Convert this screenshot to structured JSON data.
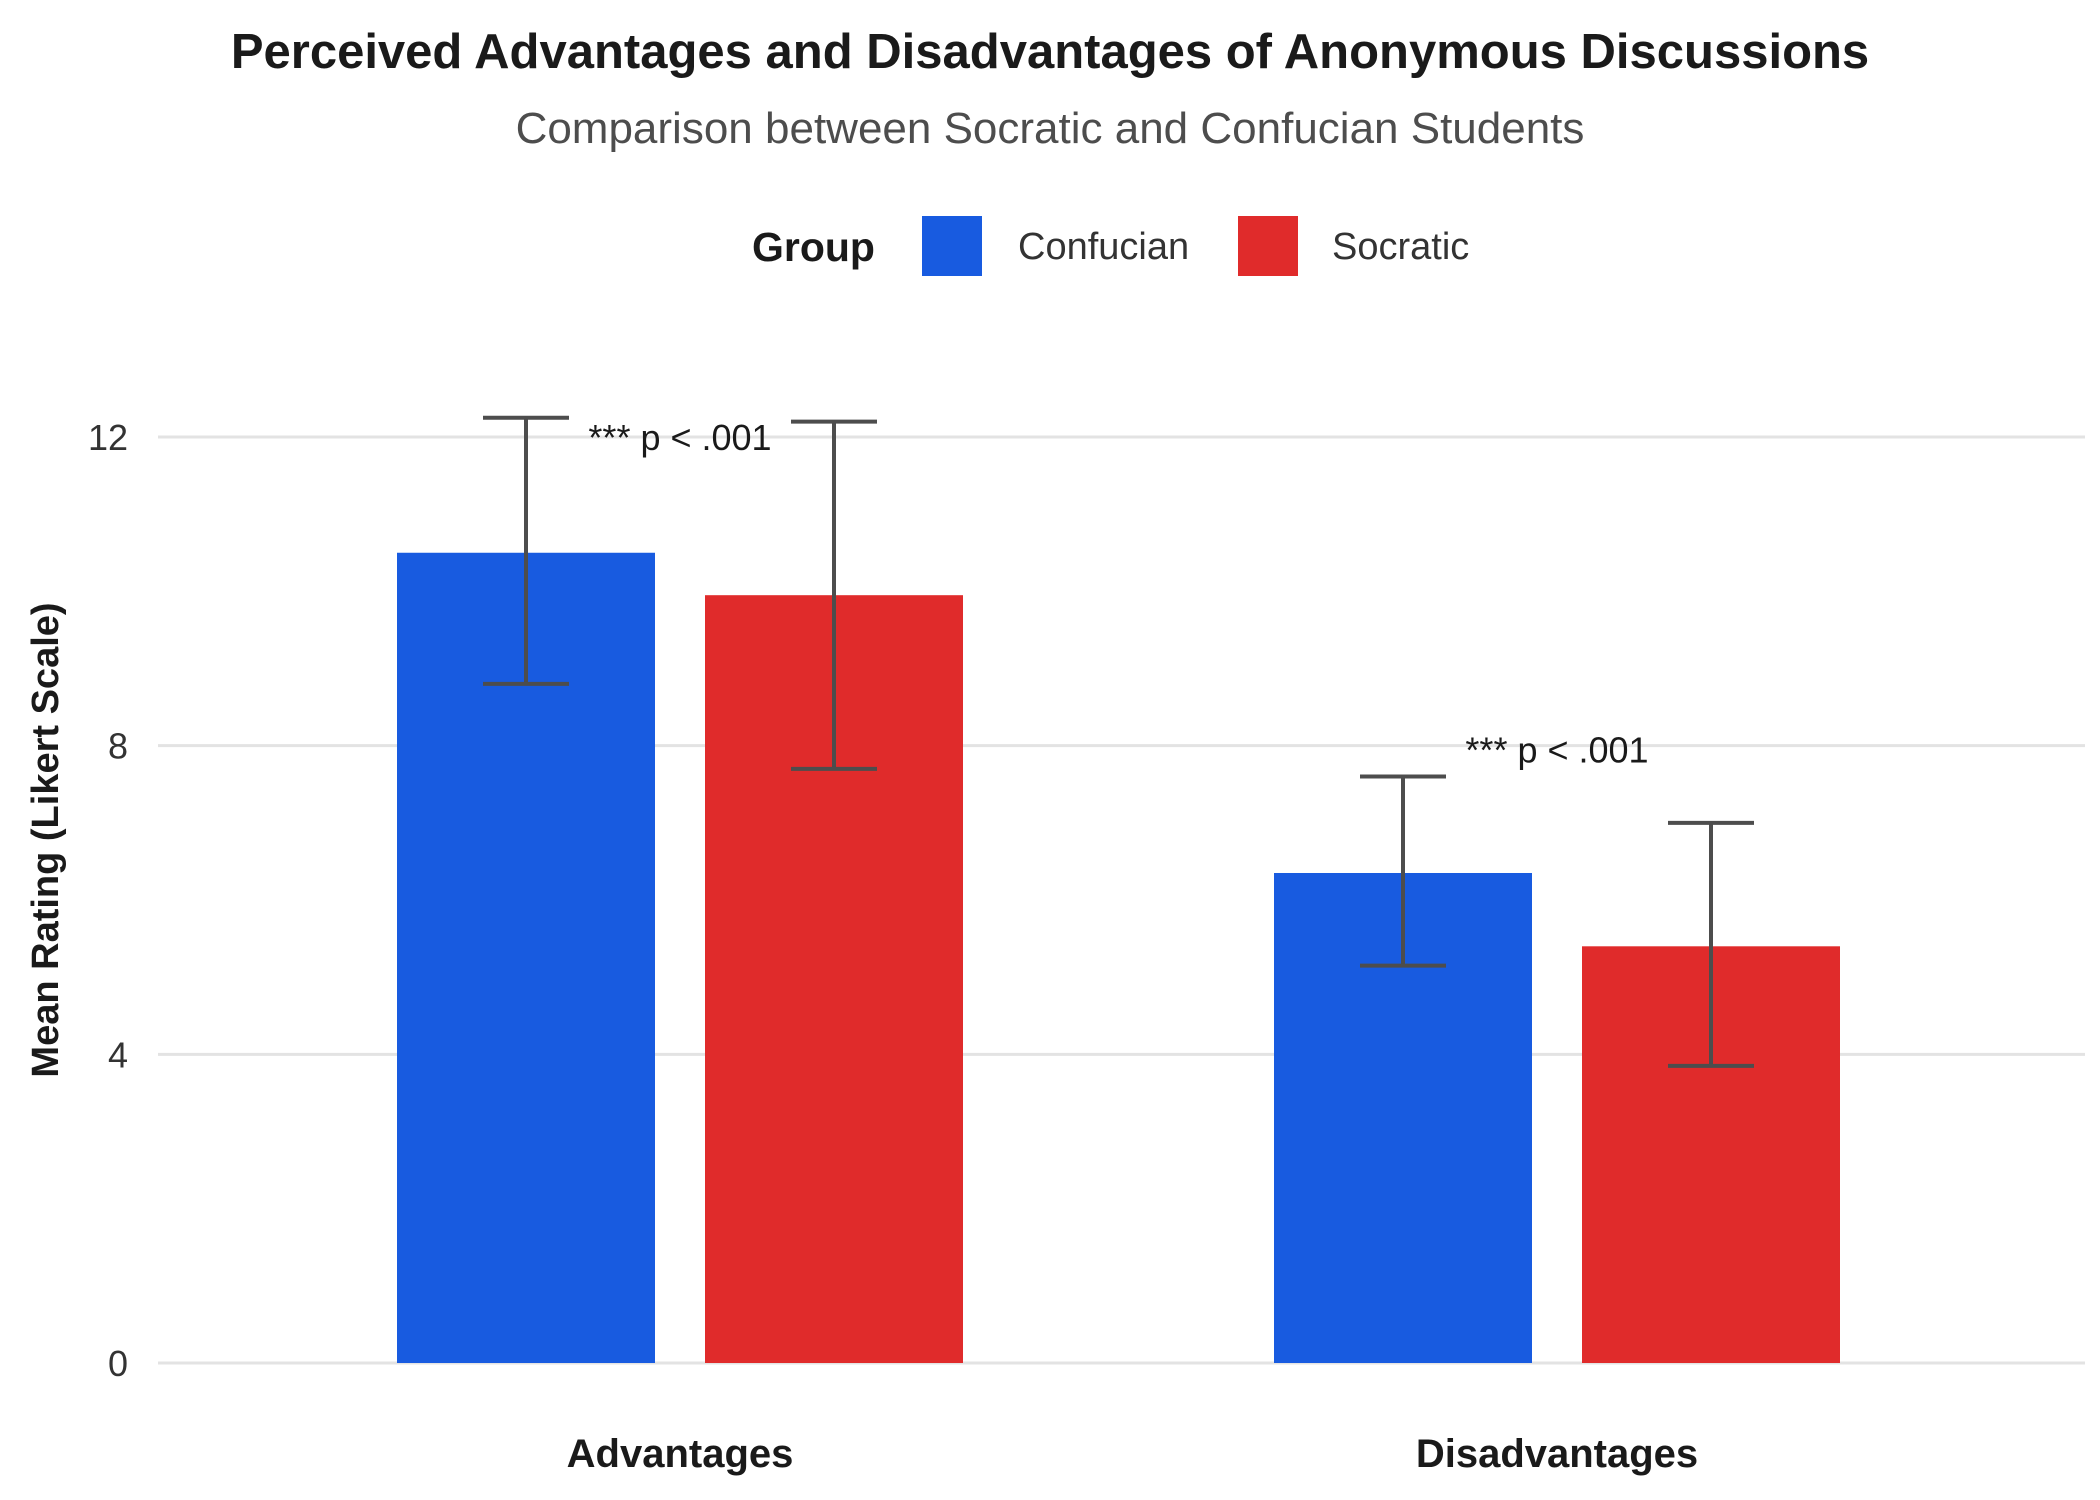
{
  "colors": {
    "confucian": "#185be0",
    "socratic": "#e02b2b",
    "errorbar": "#4d4d4d",
    "grid": "#e3e3e3"
  },
  "legend": {
    "title": "Group",
    "items": [
      {
        "label": "Confucian",
        "color": "#185be0"
      },
      {
        "label": "Socratic",
        "color": "#e02b2b"
      }
    ]
  },
  "chart_data": {
    "type": "bar",
    "title": "Perceived Advantages and Disadvantages of Anonymous Discussions",
    "subtitle": "Comparison between Socratic and Confucian Students",
    "xlabel": "",
    "ylabel": "Mean Rating (Likert Scale)",
    "categories": [
      "Advantages",
      "Disadvantages"
    ],
    "ylim": [
      0,
      13.2
    ],
    "yticks": [
      0,
      4,
      8,
      12
    ],
    "grid": true,
    "legend_position": "top",
    "series": [
      {
        "name": "Confucian",
        "color": "#185be0",
        "values": [
          10.5,
          6.35
        ],
        "error_low": [
          8.8,
          5.15
        ],
        "error_high": [
          12.25,
          7.6
        ]
      },
      {
        "name": "Socratic",
        "color": "#e02b2b",
        "values": [
          9.95,
          5.4
        ],
        "error_low": [
          7.7,
          3.85
        ],
        "error_high": [
          12.2,
          7.0
        ]
      }
    ],
    "annotations": [
      {
        "category": "Advantages",
        "text": "*** p < .001",
        "y": 12.0
      },
      {
        "category": "Disadvantages",
        "text": "*** p < .001",
        "y": 7.95
      }
    ]
  }
}
